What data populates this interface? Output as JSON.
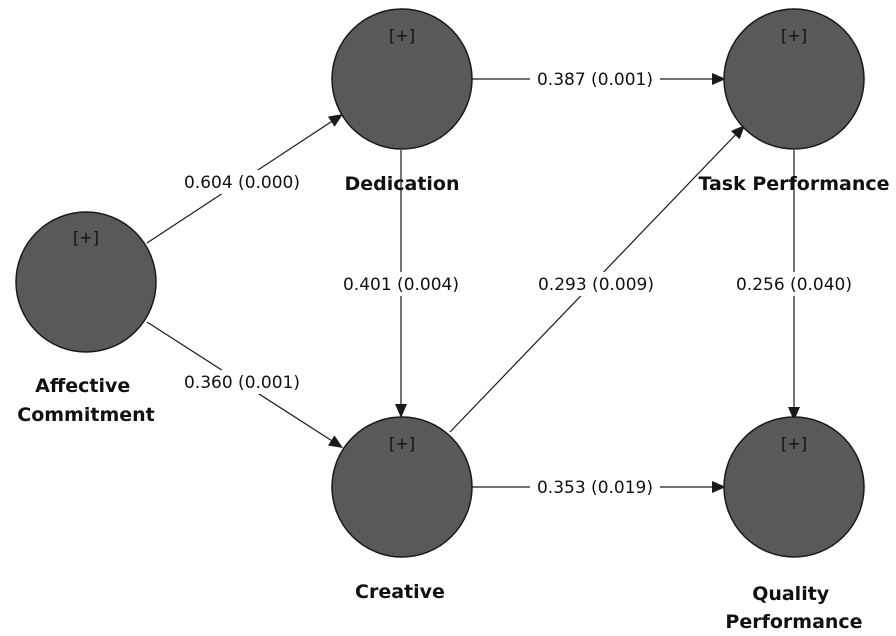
{
  "diagram": {
    "nodes": {
      "affective": {
        "expand": "[+]",
        "label_lines": [
          "Affective",
          "Commitment"
        ]
      },
      "dedication": {
        "expand": "[+]",
        "label_lines": [
          "Dedication"
        ]
      },
      "creative": {
        "expand": "[+]",
        "label_lines": [
          "Creative"
        ]
      },
      "task": {
        "expand": "[+]",
        "label_lines": [
          "Task Performance"
        ]
      },
      "quality": {
        "expand": "[+]",
        "label_lines": [
          "Quality",
          "Performance"
        ]
      }
    },
    "edges": {
      "affective_dedication": "0.604 (0.000)",
      "affective_creative": "0.360 (0.001)",
      "dedication_creative": "0.401 (0.004)",
      "dedication_task": "0.387 (0.001)",
      "creative_task": "0.293 (0.009)",
      "creative_quality": "0.353 (0.019)",
      "task_quality": "0.256 (0.040)"
    }
  }
}
